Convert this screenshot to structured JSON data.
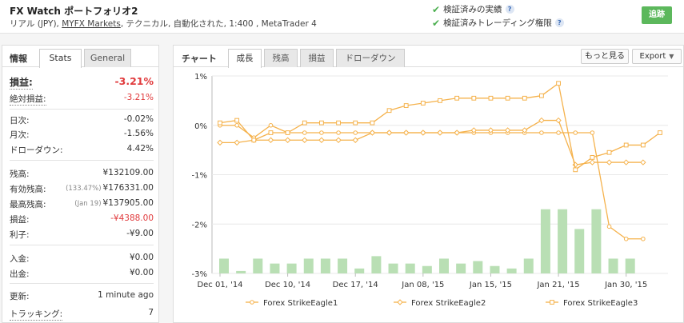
{
  "header": {
    "title": "FX Watch ポートフォリオ2",
    "sub_prefix": "リアル (JPY), ",
    "sub_link": "MYFX Markets",
    "sub_suffix": ", テクニカル, 自動化された, 1:400 , MetaTrader 4",
    "verify1": "検証済みの実績",
    "verify2": "検証済みトレーディング権限",
    "follow_label": "追跡"
  },
  "left": {
    "tab_head": "情報",
    "tab_stats": "Stats",
    "tab_general": "General",
    "rows": [
      {
        "label": "損益:",
        "value": "-3.21%"
      },
      {
        "label": "絶対損益:",
        "value": "-3.21%"
      },
      {
        "label": "日次:",
        "value": "-0.02%"
      },
      {
        "label": "月次:",
        "value": "-1.56%"
      },
      {
        "label": "ドローダウン:",
        "value": "4.42%"
      },
      {
        "label": "残高:",
        "value": "¥132109.00"
      },
      {
        "label": "有効残高:",
        "note": "(133.47%)",
        "value": "¥176331.00"
      },
      {
        "label": "最高残高:",
        "note": "(Jan 19)",
        "value": "¥137905.00"
      },
      {
        "label": "損益:",
        "value": "-¥4388.00"
      },
      {
        "label": "利子:",
        "value": "-¥9.00"
      },
      {
        "label": "入金:",
        "value": "¥0.00"
      },
      {
        "label": "出金:",
        "value": "¥0.00"
      },
      {
        "label": "更新:",
        "value": "1 minute ago"
      },
      {
        "label": "トラッキング:",
        "value": "7"
      }
    ]
  },
  "chart_panel": {
    "tab_head": "チャート",
    "tabs": [
      "成長",
      "残高",
      "損益",
      "ドローダウン"
    ],
    "more_label": "もっと見る",
    "export_label": "Export"
  },
  "chart_data": {
    "type": "line",
    "y_ticks": [
      "1%",
      "0%",
      "-1%",
      "-2%",
      "-3%"
    ],
    "ylim": [
      -3,
      1
    ],
    "x_tick_labels": [
      "Dec 01, '14",
      "Dec 10, '14",
      "Dec 17, '14",
      "Jan 08, '15",
      "Jan 15, '15",
      "Jan 21, '15",
      "Jan 30, '15"
    ],
    "x_tick_index": [
      0,
      4,
      8,
      12,
      16,
      20,
      24
    ],
    "series": [
      {
        "name": "Forex StrikeEagle1",
        "color": "#f5b24c",
        "values": [
          0.0,
          0.0,
          -0.25,
          0.0,
          -0.15,
          -0.15,
          -0.15,
          -0.15,
          -0.15,
          -0.15,
          -0.15,
          -0.15,
          -0.15,
          -0.15,
          -0.15,
          -0.15,
          -0.15,
          -0.15,
          -0.15,
          -0.15,
          -0.15,
          -0.15,
          -0.15,
          -2.05,
          -2.3,
          -2.3
        ]
      },
      {
        "name": "Forex StrikeEagle2",
        "color": "#f5b24c",
        "values": [
          -0.35,
          -0.35,
          -0.3,
          -0.3,
          -0.3,
          -0.3,
          -0.3,
          -0.3,
          -0.3,
          -0.15,
          -0.15,
          -0.15,
          -0.15,
          -0.15,
          -0.15,
          -0.1,
          -0.1,
          -0.1,
          -0.1,
          0.1,
          0.1,
          -0.8,
          -0.75,
          -0.75,
          -0.75,
          -0.75
        ]
      },
      {
        "name": "Forex StrikeEagle3",
        "color": "#f5b24c",
        "values": [
          0.05,
          0.1,
          -0.3,
          -0.15,
          -0.15,
          0.05,
          0.05,
          0.05,
          0.05,
          0.05,
          0.3,
          0.4,
          0.45,
          0.5,
          0.55,
          0.55,
          0.55,
          0.55,
          0.55,
          0.6,
          0.85,
          -0.9,
          -0.65,
          -0.55,
          -0.4,
          -0.4,
          -0.15
        ]
      }
    ],
    "bars": [
      0.3,
      0.05,
      0.3,
      0.2,
      0.2,
      0.3,
      0.3,
      0.3,
      0.1,
      0.35,
      0.2,
      0.2,
      0.15,
      0.3,
      0.2,
      0.25,
      0.15,
      0.1,
      0.3,
      1.3,
      1.3,
      0.9,
      1.3,
      0.3,
      0.3
    ]
  }
}
